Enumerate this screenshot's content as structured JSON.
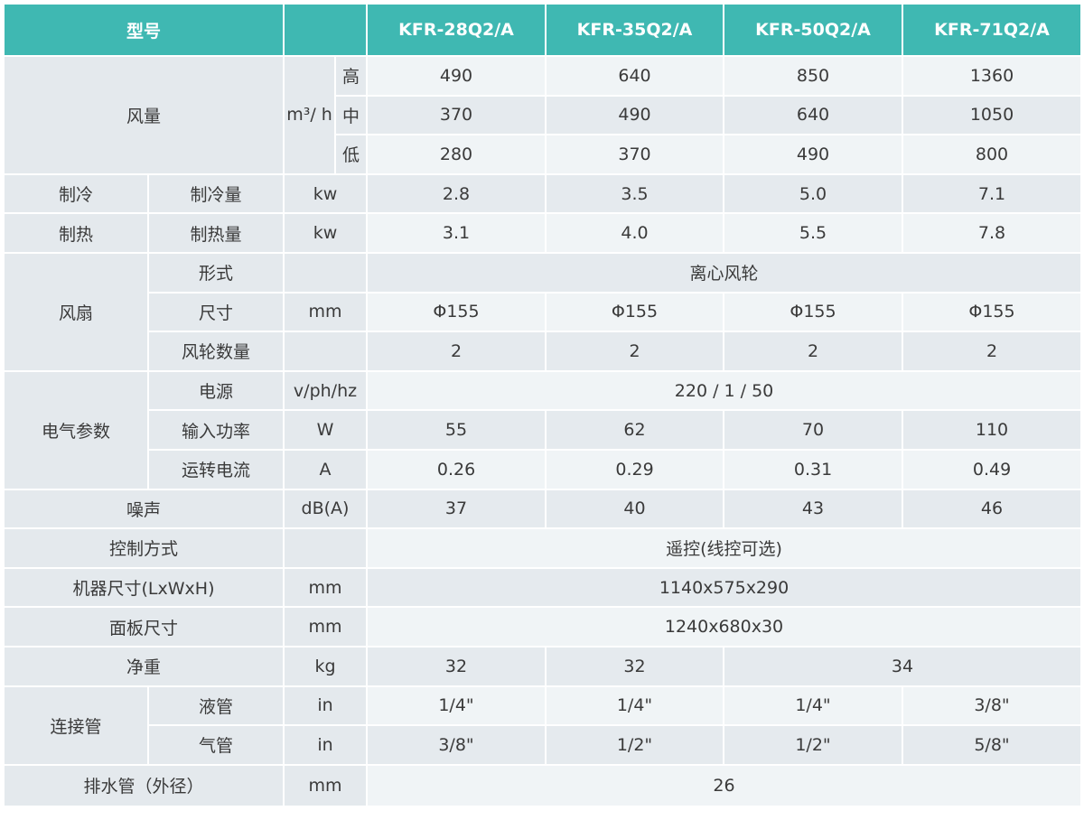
{
  "colors": {
    "header_bg": "#3fb8b2",
    "label_bg": "#e4e9ed",
    "value_light": "#f0f4f6",
    "value_dark": "#e5eaee"
  },
  "header": {
    "model_label": "型号",
    "models": [
      "KFR-28Q2/A",
      "KFR-35Q2/A",
      "KFR-50Q2/A",
      "KFR-71Q2/A"
    ]
  },
  "rows": [
    {
      "cells": [
        {
          "t": "风量",
          "k": "lbl",
          "cs": 2,
          "rs": 3
        },
        {
          "t": "m³/ h",
          "k": "unit",
          "rs": 3
        },
        {
          "t": "高",
          "k": "unit"
        },
        {
          "t": "490",
          "k": "val"
        },
        {
          "t": "640",
          "k": "val"
        },
        {
          "t": "850",
          "k": "val"
        },
        {
          "t": "1360",
          "k": "val"
        }
      ]
    },
    {
      "cells": [
        {
          "t": "中",
          "k": "unit"
        },
        {
          "t": "370",
          "k": "val"
        },
        {
          "t": "490",
          "k": "val"
        },
        {
          "t": "640",
          "k": "val"
        },
        {
          "t": "1050",
          "k": "val"
        }
      ]
    },
    {
      "cells": [
        {
          "t": "低",
          "k": "unit"
        },
        {
          "t": "280",
          "k": "val"
        },
        {
          "t": "370",
          "k": "val"
        },
        {
          "t": "490",
          "k": "val"
        },
        {
          "t": "800",
          "k": "val"
        }
      ]
    },
    {
      "cells": [
        {
          "t": "制冷",
          "k": "lbl"
        },
        {
          "t": "制冷量",
          "k": "lbl"
        },
        {
          "t": "kw",
          "k": "unit",
          "cs": 2
        },
        {
          "t": "2.8",
          "k": "val"
        },
        {
          "t": "3.5",
          "k": "val"
        },
        {
          "t": "5.0",
          "k": "val"
        },
        {
          "t": "7.1",
          "k": "val"
        }
      ]
    },
    {
      "cells": [
        {
          "t": "制热",
          "k": "lbl"
        },
        {
          "t": "制热量",
          "k": "lbl"
        },
        {
          "t": "kw",
          "k": "unit",
          "cs": 2
        },
        {
          "t": "3.1",
          "k": "val"
        },
        {
          "t": "4.0",
          "k": "val"
        },
        {
          "t": "5.5",
          "k": "val"
        },
        {
          "t": "7.8",
          "k": "val"
        }
      ]
    },
    {
      "cells": [
        {
          "t": "风扇",
          "k": "lbl",
          "rs": 3
        },
        {
          "t": "形式",
          "k": "lbl"
        },
        {
          "t": "",
          "k": "unit",
          "cs": 2
        },
        {
          "t": "离心风轮",
          "k": "val",
          "cs": 4
        }
      ]
    },
    {
      "cells": [
        {
          "t": "尺寸",
          "k": "lbl"
        },
        {
          "t": "mm",
          "k": "unit",
          "cs": 2
        },
        {
          "t": "Φ155",
          "k": "val"
        },
        {
          "t": "Φ155",
          "k": "val"
        },
        {
          "t": "Φ155",
          "k": "val"
        },
        {
          "t": "Φ155",
          "k": "val"
        }
      ]
    },
    {
      "cells": [
        {
          "t": "风轮数量",
          "k": "lbl"
        },
        {
          "t": "",
          "k": "unit",
          "cs": 2
        },
        {
          "t": "2",
          "k": "val"
        },
        {
          "t": "2",
          "k": "val"
        },
        {
          "t": "2",
          "k": "val"
        },
        {
          "t": "2",
          "k": "val"
        }
      ]
    },
    {
      "cells": [
        {
          "t": "电气参数",
          "k": "lbl",
          "rs": 3
        },
        {
          "t": "电源",
          "k": "lbl"
        },
        {
          "t": "v/ph/hz",
          "k": "unit",
          "cs": 2
        },
        {
          "t": "220 / 1 / 50",
          "k": "val",
          "cs": 4
        }
      ]
    },
    {
      "cells": [
        {
          "t": "输入功率",
          "k": "lbl"
        },
        {
          "t": "W",
          "k": "unit",
          "cs": 2
        },
        {
          "t": "55",
          "k": "val"
        },
        {
          "t": "62",
          "k": "val"
        },
        {
          "t": "70",
          "k": "val"
        },
        {
          "t": "110",
          "k": "val"
        }
      ]
    },
    {
      "cells": [
        {
          "t": "运转电流",
          "k": "lbl"
        },
        {
          "t": "A",
          "k": "unit",
          "cs": 2
        },
        {
          "t": "0.26",
          "k": "val"
        },
        {
          "t": "0.29",
          "k": "val"
        },
        {
          "t": "0.31",
          "k": "val"
        },
        {
          "t": "0.49",
          "k": "val"
        }
      ]
    },
    {
      "cells": [
        {
          "t": "噪声",
          "k": "lbl",
          "cs": 2
        },
        {
          "t": "dB(A)",
          "k": "unit",
          "cs": 2
        },
        {
          "t": "37",
          "k": "val"
        },
        {
          "t": "40",
          "k": "val"
        },
        {
          "t": "43",
          "k": "val"
        },
        {
          "t": "46",
          "k": "val"
        }
      ]
    },
    {
      "cells": [
        {
          "t": "控制方式",
          "k": "lbl",
          "cs": 2
        },
        {
          "t": "",
          "k": "unit",
          "cs": 2
        },
        {
          "t": "遥控(线控可选)",
          "k": "val",
          "cs": 4
        }
      ]
    },
    {
      "cells": [
        {
          "t": "机器尺寸(LxWxH)",
          "k": "lbl",
          "cs": 2
        },
        {
          "t": "mm",
          "k": "unit",
          "cs": 2
        },
        {
          "t": "1140x575x290",
          "k": "val",
          "cs": 4
        }
      ]
    },
    {
      "cells": [
        {
          "t": "面板尺寸",
          "k": "lbl",
          "cs": 2
        },
        {
          "t": "mm",
          "k": "unit",
          "cs": 2
        },
        {
          "t": "1240x680x30",
          "k": "val",
          "cs": 4
        }
      ]
    },
    {
      "cells": [
        {
          "t": "净重",
          "k": "lbl",
          "cs": 2
        },
        {
          "t": "kg",
          "k": "unit",
          "cs": 2
        },
        {
          "t": "32",
          "k": "val"
        },
        {
          "t": "32",
          "k": "val"
        },
        {
          "t": "34",
          "k": "val",
          "cs": 2
        }
      ]
    },
    {
      "cells": [
        {
          "t": "连接管",
          "k": "lbl",
          "rs": 2
        },
        {
          "t": "液管",
          "k": "lbl"
        },
        {
          "t": "in",
          "k": "unit",
          "cs": 2
        },
        {
          "t": "1/4\"",
          "k": "val"
        },
        {
          "t": "1/4\"",
          "k": "val"
        },
        {
          "t": "1/4\"",
          "k": "val"
        },
        {
          "t": "3/8\"",
          "k": "val"
        }
      ]
    },
    {
      "cells": [
        {
          "t": "气管",
          "k": "lbl"
        },
        {
          "t": "in",
          "k": "unit",
          "cs": 2
        },
        {
          "t": "3/8\"",
          "k": "val"
        },
        {
          "t": "1/2\"",
          "k": "val"
        },
        {
          "t": "1/2\"",
          "k": "val"
        },
        {
          "t": "5/8\"",
          "k": "val"
        }
      ]
    },
    {
      "cells": [
        {
          "t": "排水管（外径）",
          "k": "lbl",
          "cs": 2
        },
        {
          "t": "mm",
          "k": "unit",
          "cs": 2
        },
        {
          "t": "26",
          "k": "val",
          "cs": 4
        }
      ]
    }
  ]
}
